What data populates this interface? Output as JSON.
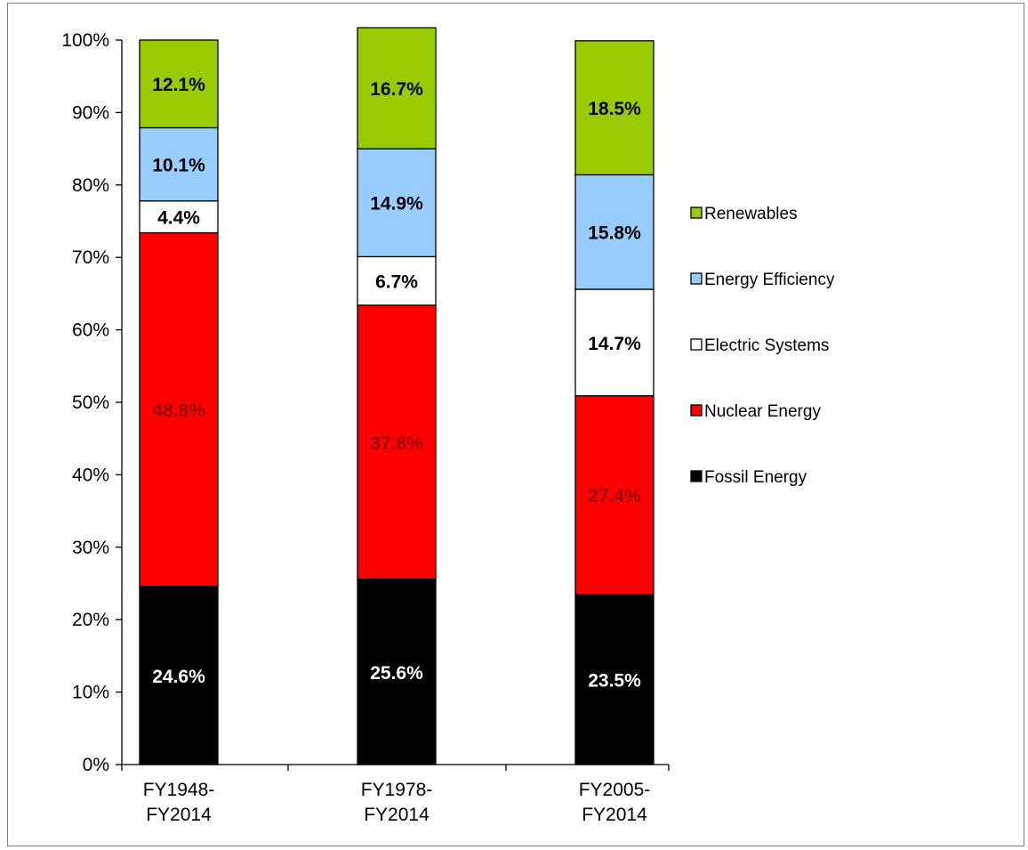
{
  "chart_data": {
    "type": "bar",
    "stacked": true,
    "percent": true,
    "categories": [
      [
        "FY1948-",
        "FY2014"
      ],
      [
        "FY1978-",
        "FY2014"
      ],
      [
        "FY2005-",
        "FY2014"
      ]
    ],
    "ylim": [
      0,
      100
    ],
    "yticks": [
      "0%",
      "10%",
      "20%",
      "30%",
      "40%",
      "50%",
      "60%",
      "70%",
      "80%",
      "90%",
      "100%"
    ],
    "grid": false,
    "legend_position": "right",
    "series": [
      {
        "name": "Fossil Energy",
        "color": "#000000",
        "label_color": "#ffffff",
        "values": [
          24.6,
          25.6,
          23.5
        ],
        "labels": [
          "24.6%",
          "25.6%",
          "23.5%"
        ]
      },
      {
        "name": "Nuclear Energy",
        "color": "#ff0000",
        "label_color": "#990000",
        "values": [
          48.8,
          37.8,
          27.4
        ],
        "labels": [
          "48.8%",
          "37.8%",
          "27.4%"
        ]
      },
      {
        "name": "Electric Systems",
        "color": "#ffffff",
        "label_color": "#000000",
        "values": [
          4.4,
          6.7,
          14.7
        ],
        "labels": [
          "4.4%",
          "6.7%",
          "14.7%"
        ]
      },
      {
        "name": "Energy Efficiency",
        "color": "#99ccff",
        "label_color": "#000000",
        "values": [
          10.1,
          14.9,
          15.8
        ],
        "labels": [
          "10.1%",
          "14.9%",
          "15.8%"
        ]
      },
      {
        "name": "Renewables",
        "color": "#99cc00",
        "label_color": "#000000",
        "values": [
          12.1,
          16.7,
          18.5
        ],
        "labels": [
          "12.1%",
          "16.7%",
          "18.5%"
        ]
      }
    ]
  }
}
